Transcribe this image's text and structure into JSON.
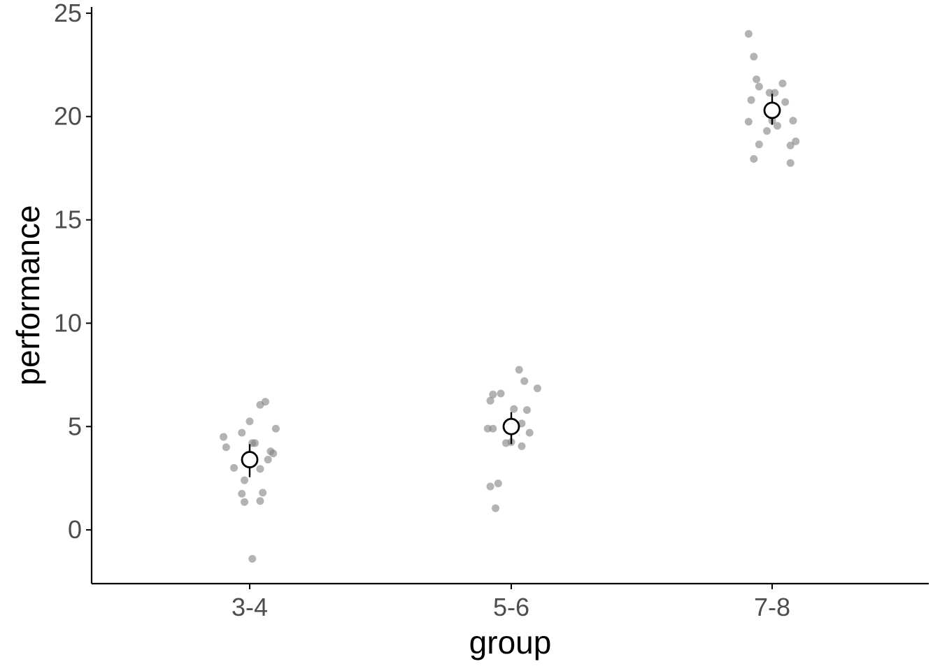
{
  "chart_data": {
    "type": "scatter",
    "xlabel": "group",
    "ylabel": "performance",
    "categories": [
      "3-4",
      "5-6",
      "7-8"
    ],
    "yticks": [
      "0",
      "5",
      "10",
      "15",
      "20",
      "25"
    ],
    "ylim": [
      -2.6,
      25.3
    ],
    "grid": false,
    "legend": "none",
    "points": [
      {
        "group": "3-4",
        "offset": -0.1,
        "value": 4.5
      },
      {
        "group": "3-4",
        "offset": -0.09,
        "value": 4.0
      },
      {
        "group": "3-4",
        "offset": -0.06,
        "value": 3.0
      },
      {
        "group": "3-4",
        "offset": -0.03,
        "value": 4.7
      },
      {
        "group": "3-4",
        "offset": -0.03,
        "value": 1.75
      },
      {
        "group": "3-4",
        "offset": -0.02,
        "value": 1.35
      },
      {
        "group": "3-4",
        "offset": -0.02,
        "value": 2.4
      },
      {
        "group": "3-4",
        "offset": 0.0,
        "value": 5.25
      },
      {
        "group": "3-4",
        "offset": 0.01,
        "value": 4.2
      },
      {
        "group": "3-4",
        "offset": 0.02,
        "value": 4.2
      },
      {
        "group": "3-4",
        "offset": 0.01,
        "value": -1.4
      },
      {
        "group": "3-4",
        "offset": 0.04,
        "value": 2.95
      },
      {
        "group": "3-4",
        "offset": 0.04,
        "value": 6.05
      },
      {
        "group": "3-4",
        "offset": 0.04,
        "value": 1.4
      },
      {
        "group": "3-4",
        "offset": 0.05,
        "value": 1.8
      },
      {
        "group": "3-4",
        "offset": 0.06,
        "value": 6.2
      },
      {
        "group": "3-4",
        "offset": 0.07,
        "value": 3.4
      },
      {
        "group": "3-4",
        "offset": 0.08,
        "value": 3.8
      },
      {
        "group": "3-4",
        "offset": 0.09,
        "value": 3.7
      },
      {
        "group": "3-4",
        "offset": 0.1,
        "value": 4.9
      },
      {
        "group": "5-6",
        "offset": -0.09,
        "value": 4.9
      },
      {
        "group": "5-6",
        "offset": -0.08,
        "value": 6.25
      },
      {
        "group": "5-6",
        "offset": -0.08,
        "value": 2.1
      },
      {
        "group": "5-6",
        "offset": -0.07,
        "value": 4.9
      },
      {
        "group": "5-6",
        "offset": -0.07,
        "value": 6.55
      },
      {
        "group": "5-6",
        "offset": -0.06,
        "value": 1.05
      },
      {
        "group": "5-6",
        "offset": -0.05,
        "value": 2.25
      },
      {
        "group": "5-6",
        "offset": -0.04,
        "value": 6.6
      },
      {
        "group": "5-6",
        "offset": -0.02,
        "value": 4.2
      },
      {
        "group": "5-6",
        "offset": 0.0,
        "value": 4.25
      },
      {
        "group": "5-6",
        "offset": 0.01,
        "value": 5.85
      },
      {
        "group": "5-6",
        "offset": 0.03,
        "value": 7.75
      },
      {
        "group": "5-6",
        "offset": 0.04,
        "value": 4.05
      },
      {
        "group": "5-6",
        "offset": 0.04,
        "value": 5.15
      },
      {
        "group": "5-6",
        "offset": 0.05,
        "value": 7.2
      },
      {
        "group": "5-6",
        "offset": 0.06,
        "value": 5.8
      },
      {
        "group": "5-6",
        "offset": 0.07,
        "value": 4.7
      },
      {
        "group": "5-6",
        "offset": 0.1,
        "value": 6.85
      },
      {
        "group": "7-8",
        "offset": -0.09,
        "value": 24.0
      },
      {
        "group": "7-8",
        "offset": -0.09,
        "value": 19.75
      },
      {
        "group": "7-8",
        "offset": -0.08,
        "value": 20.8
      },
      {
        "group": "7-8",
        "offset": -0.07,
        "value": 22.9
      },
      {
        "group": "7-8",
        "offset": -0.07,
        "value": 17.95
      },
      {
        "group": "7-8",
        "offset": -0.06,
        "value": 21.8
      },
      {
        "group": "7-8",
        "offset": -0.05,
        "value": 21.45
      },
      {
        "group": "7-8",
        "offset": -0.05,
        "value": 18.65
      },
      {
        "group": "7-8",
        "offset": -0.01,
        "value": 21.15
      },
      {
        "group": "7-8",
        "offset": -0.02,
        "value": 19.3
      },
      {
        "group": "7-8",
        "offset": 0.0,
        "value": 19.8
      },
      {
        "group": "7-8",
        "offset": 0.01,
        "value": 21.15
      },
      {
        "group": "7-8",
        "offset": 0.02,
        "value": 19.55
      },
      {
        "group": "7-8",
        "offset": 0.04,
        "value": 21.6
      },
      {
        "group": "7-8",
        "offset": 0.05,
        "value": 20.7
      },
      {
        "group": "7-8",
        "offset": 0.07,
        "value": 17.75
      },
      {
        "group": "7-8",
        "offset": 0.07,
        "value": 18.6
      },
      {
        "group": "7-8",
        "offset": 0.08,
        "value": 19.8
      },
      {
        "group": "7-8",
        "offset": 0.09,
        "value": 18.8
      }
    ],
    "summary": [
      {
        "group": "3-4",
        "mean": 3.4,
        "ci": [
          2.55,
          4.15
        ]
      },
      {
        "group": "5-6",
        "mean": 5.0,
        "ci": [
          4.15,
          5.7
        ]
      },
      {
        "group": "7-8",
        "mean": 20.3,
        "ci": [
          19.6,
          21.1
        ]
      }
    ],
    "colors": {
      "points": "#808080",
      "summary_fill": "#ffffff",
      "summary_stroke": "#000000",
      "axis": "#000000",
      "tick_label": "#4d4d4d"
    }
  }
}
